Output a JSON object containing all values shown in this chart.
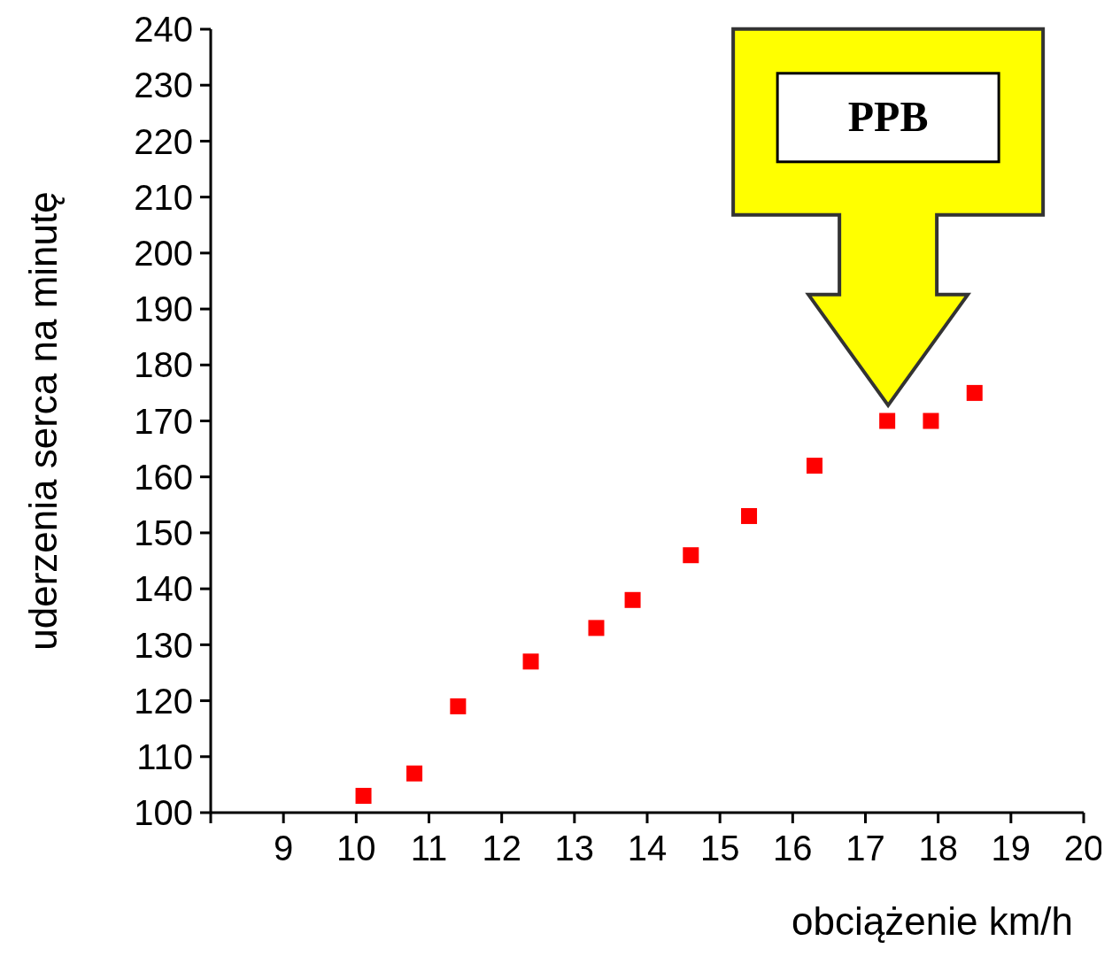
{
  "chart_data": {
    "type": "scatter",
    "xlabel": "obciążenie km/h",
    "ylabel": "uderzenia serca na minutę",
    "x": [
      10.1,
      10.8,
      11.4,
      12.4,
      13.3,
      13.8,
      14.6,
      15.4,
      16.3,
      17.3,
      17.9,
      18.5
    ],
    "series": [
      {
        "color": "#ff0000",
        "values": [
          103,
          107,
          119,
          127,
          133,
          138,
          146,
          153,
          162,
          170,
          170,
          175
        ]
      }
    ],
    "xlim": [
      8,
      20
    ],
    "xticks": [
      {
        "value": 8,
        "label": null
      },
      9,
      10,
      11,
      12,
      13,
      14,
      15,
      16,
      17,
      18,
      19,
      20
    ],
    "ylim": [
      100,
      240
    ],
    "yticks": [
      100,
      110,
      120,
      130,
      140,
      150,
      160,
      170,
      180,
      190,
      200,
      210,
      220,
      230,
      240
    ],
    "marker": "square",
    "annotations": [
      "PPB"
    ]
  }
}
